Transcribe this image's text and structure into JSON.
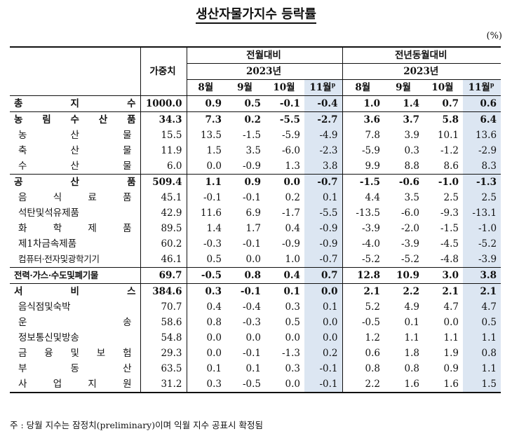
{
  "title": "생산자물가지수 등락률",
  "unit": "(%)",
  "header": {
    "weight": "가중치",
    "group1": "전월대비",
    "group2": "전년동월대비",
    "year1": "2023년",
    "year2": "2023년",
    "months": [
      "8월",
      "9월",
      "10월",
      "11월"
    ],
    "prelim_mark": "p"
  },
  "rows": [
    {
      "label": "총 지 수",
      "kind": "cat",
      "weight": "1000.0",
      "mom": [
        "0.9",
        "0.5",
        "-0.1",
        "-0.4"
      ],
      "yoy": [
        "1.0",
        "1.4",
        "0.7",
        "0.6"
      ]
    },
    {
      "label": "농 림 수 산 품",
      "kind": "cat",
      "weight": "34.3",
      "mom": [
        "7.3",
        "0.2",
        "-5.5",
        "-2.7"
      ],
      "yoy": [
        "3.6",
        "3.7",
        "5.8",
        "6.4"
      ]
    },
    {
      "label": "농 산 물",
      "kind": "sub",
      "weight": "15.5",
      "mom": [
        "13.5",
        "-1.5",
        "-5.9",
        "-4.9"
      ],
      "yoy": [
        "7.8",
        "3.9",
        "10.1",
        "13.6"
      ]
    },
    {
      "label": "축 산 물",
      "kind": "sub",
      "weight": "11.9",
      "mom": [
        "1.5",
        "3.5",
        "-6.0",
        "-2.3"
      ],
      "yoy": [
        "-5.9",
        "0.3",
        "-1.2",
        "-2.9"
      ]
    },
    {
      "label": "수 산 물",
      "kind": "sub",
      "weight": "6.0",
      "mom": [
        "0.0",
        "-0.9",
        "1.3",
        "3.8"
      ],
      "yoy": [
        "9.9",
        "8.8",
        "8.6",
        "8.3"
      ]
    },
    {
      "label": "공 산 품",
      "kind": "cat",
      "weight": "509.4",
      "mom": [
        "1.1",
        "0.9",
        "0.0",
        "-0.7"
      ],
      "yoy": [
        "-1.5",
        "-0.6",
        "-1.0",
        "-1.3"
      ]
    },
    {
      "label": "음 식 료 품",
      "kind": "sub",
      "weight": "45.1",
      "mom": [
        "-0.1",
        "-0.1",
        "0.2",
        "0.1"
      ],
      "yoy": [
        "4.4",
        "3.5",
        "2.5",
        "2.5"
      ]
    },
    {
      "label": "석탄및석유제품",
      "kind": "sub",
      "weight": "42.9",
      "mom": [
        "11.6",
        "6.9",
        "-1.7",
        "-5.5"
      ],
      "yoy": [
        "-13.5",
        "-6.0",
        "-9.3",
        "-13.1"
      ]
    },
    {
      "label": "화 학 제 품",
      "kind": "sub",
      "weight": "89.5",
      "mom": [
        "1.4",
        "1.7",
        "0.4",
        "-0.9"
      ],
      "yoy": [
        "-3.9",
        "-2.0",
        "-1.5",
        "-1.0"
      ]
    },
    {
      "label": "제1차금속제품",
      "kind": "sub",
      "weight": "60.2",
      "mom": [
        "-0.3",
        "-0.1",
        "-0.9",
        "-0.9"
      ],
      "yoy": [
        "-4.0",
        "-3.9",
        "-4.5",
        "-5.2"
      ]
    },
    {
      "label": "컴퓨터·전자및광학기기",
      "kind": "sub",
      "weight": "46.1",
      "mom": [
        "0.5",
        "0.0",
        "1.0",
        "-0.7"
      ],
      "yoy": [
        "-5.2",
        "-5.2",
        "-4.8",
        "-3.9"
      ]
    },
    {
      "label": "전력·가스·수도및폐기물",
      "kind": "cat",
      "weight": "69.7",
      "mom": [
        "-0.5",
        "0.8",
        "0.4",
        "0.7"
      ],
      "yoy": [
        "12.8",
        "10.9",
        "3.0",
        "3.8"
      ]
    },
    {
      "label": "서 비 스",
      "kind": "cat",
      "weight": "384.6",
      "mom": [
        "0.3",
        "-0.1",
        "0.1",
        "0.0"
      ],
      "yoy": [
        "2.1",
        "2.2",
        "2.1",
        "2.1"
      ]
    },
    {
      "label": "음식점및숙박",
      "kind": "sub",
      "weight": "70.7",
      "mom": [
        "0.4",
        "-0.4",
        "0.3",
        "0.1"
      ],
      "yoy": [
        "5.2",
        "4.9",
        "4.7",
        "4.7"
      ]
    },
    {
      "label": "운 송",
      "kind": "sub",
      "weight": "58.6",
      "mom": [
        "0.8",
        "-0.3",
        "0.5",
        "0.0"
      ],
      "yoy": [
        "-0.5",
        "0.1",
        "0.0",
        "0.5"
      ]
    },
    {
      "label": "정보통신및방송",
      "kind": "sub",
      "weight": "54.8",
      "mom": [
        "0.0",
        "0.0",
        "0.0",
        "0.0"
      ],
      "yoy": [
        "1.2",
        "1.1",
        "1.1",
        "1.1"
      ]
    },
    {
      "label": "금 융 및 보 험",
      "kind": "sub",
      "weight": "29.3",
      "mom": [
        "0.0",
        "-0.1",
        "-1.3",
        "0.2"
      ],
      "yoy": [
        "0.6",
        "1.8",
        "1.9",
        "0.8"
      ]
    },
    {
      "label": "부 동 산",
      "kind": "sub",
      "weight": "63.5",
      "mom": [
        "0.1",
        "0.1",
        "0.3",
        "-0.1"
      ],
      "yoy": [
        "0.8",
        "0.8",
        "0.9",
        "1.1"
      ]
    },
    {
      "label": "사 업 지 원",
      "kind": "sub",
      "weight": "31.2",
      "mom": [
        "0.3",
        "-0.5",
        "0.0",
        "-0.1"
      ],
      "yoy": [
        "2.2",
        "1.6",
        "1.6",
        "1.5"
      ]
    }
  ],
  "note": "주 : 당월 지수는 잠정치(preliminary)이며 익월 지수 공표시 확정됨"
}
